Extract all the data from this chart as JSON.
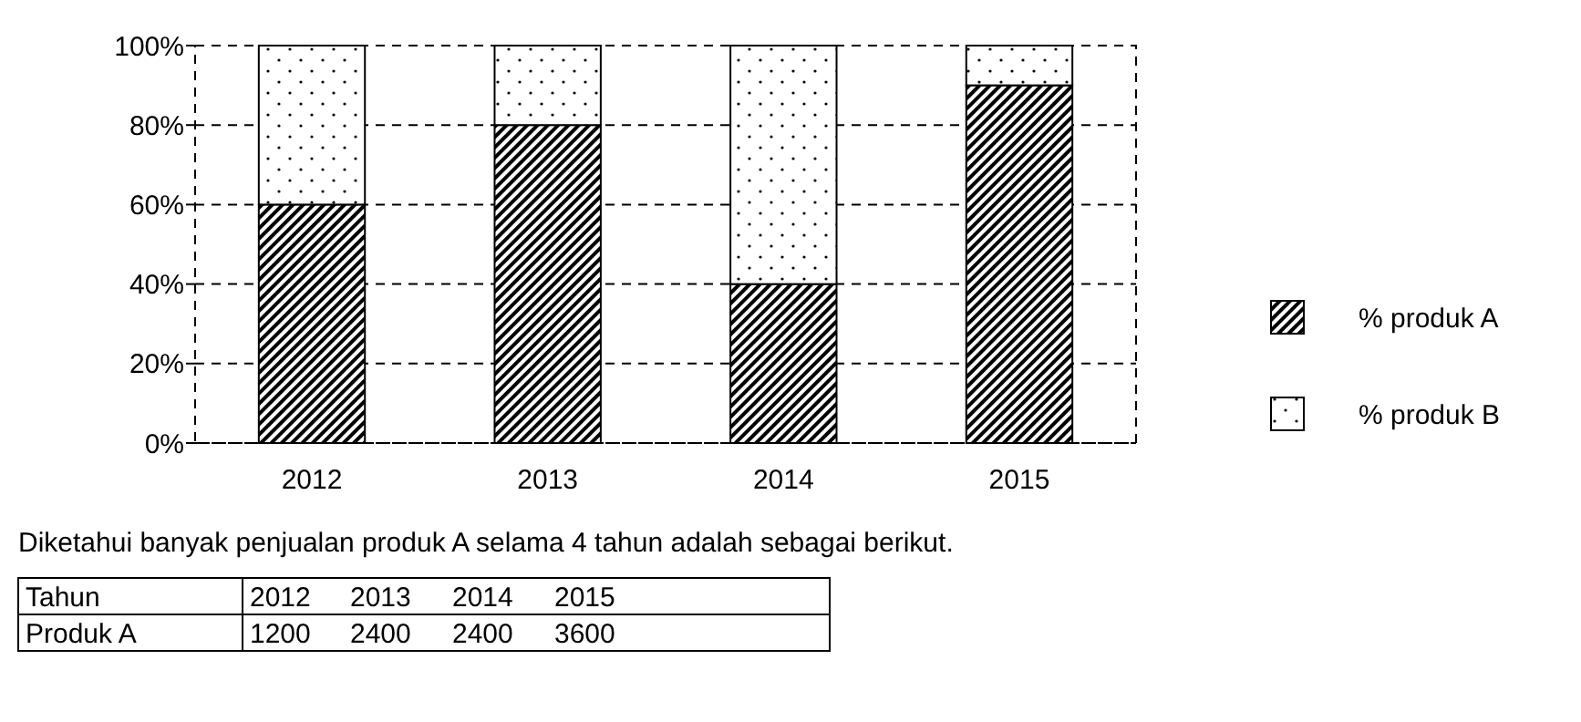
{
  "chart_data": {
    "type": "bar",
    "stacked": true,
    "categories": [
      "2012",
      "2013",
      "2014",
      "2015"
    ],
    "series": [
      {
        "name": "% produk A",
        "color": "#000000",
        "values": [
          60,
          80,
          40,
          90
        ]
      },
      {
        "name": "% produk B",
        "color": "#000000",
        "values": [
          40,
          20,
          60,
          10
        ]
      }
    ],
    "ylim": [
      0,
      100
    ],
    "yticks": [
      {
        "value": 0,
        "label": "0%"
      },
      {
        "value": 20,
        "label": "20%"
      },
      {
        "value": 40,
        "label": "40%"
      },
      {
        "value": 60,
        "label": "60%"
      },
      {
        "value": 80,
        "label": "80%"
      },
      {
        "value": 100,
        "label": "100%"
      }
    ],
    "grid": "y",
    "legend": "right",
    "annotations": [
      "Diketahui banyak penjualan produk A selama 4 tahun adalah sebagai berikut.",
      "Tahun",
      "2012",
      "2013",
      "2014",
      "2015",
      "Produk A",
      "1200",
      "2400",
      "2400",
      "3600"
    ]
  }
}
